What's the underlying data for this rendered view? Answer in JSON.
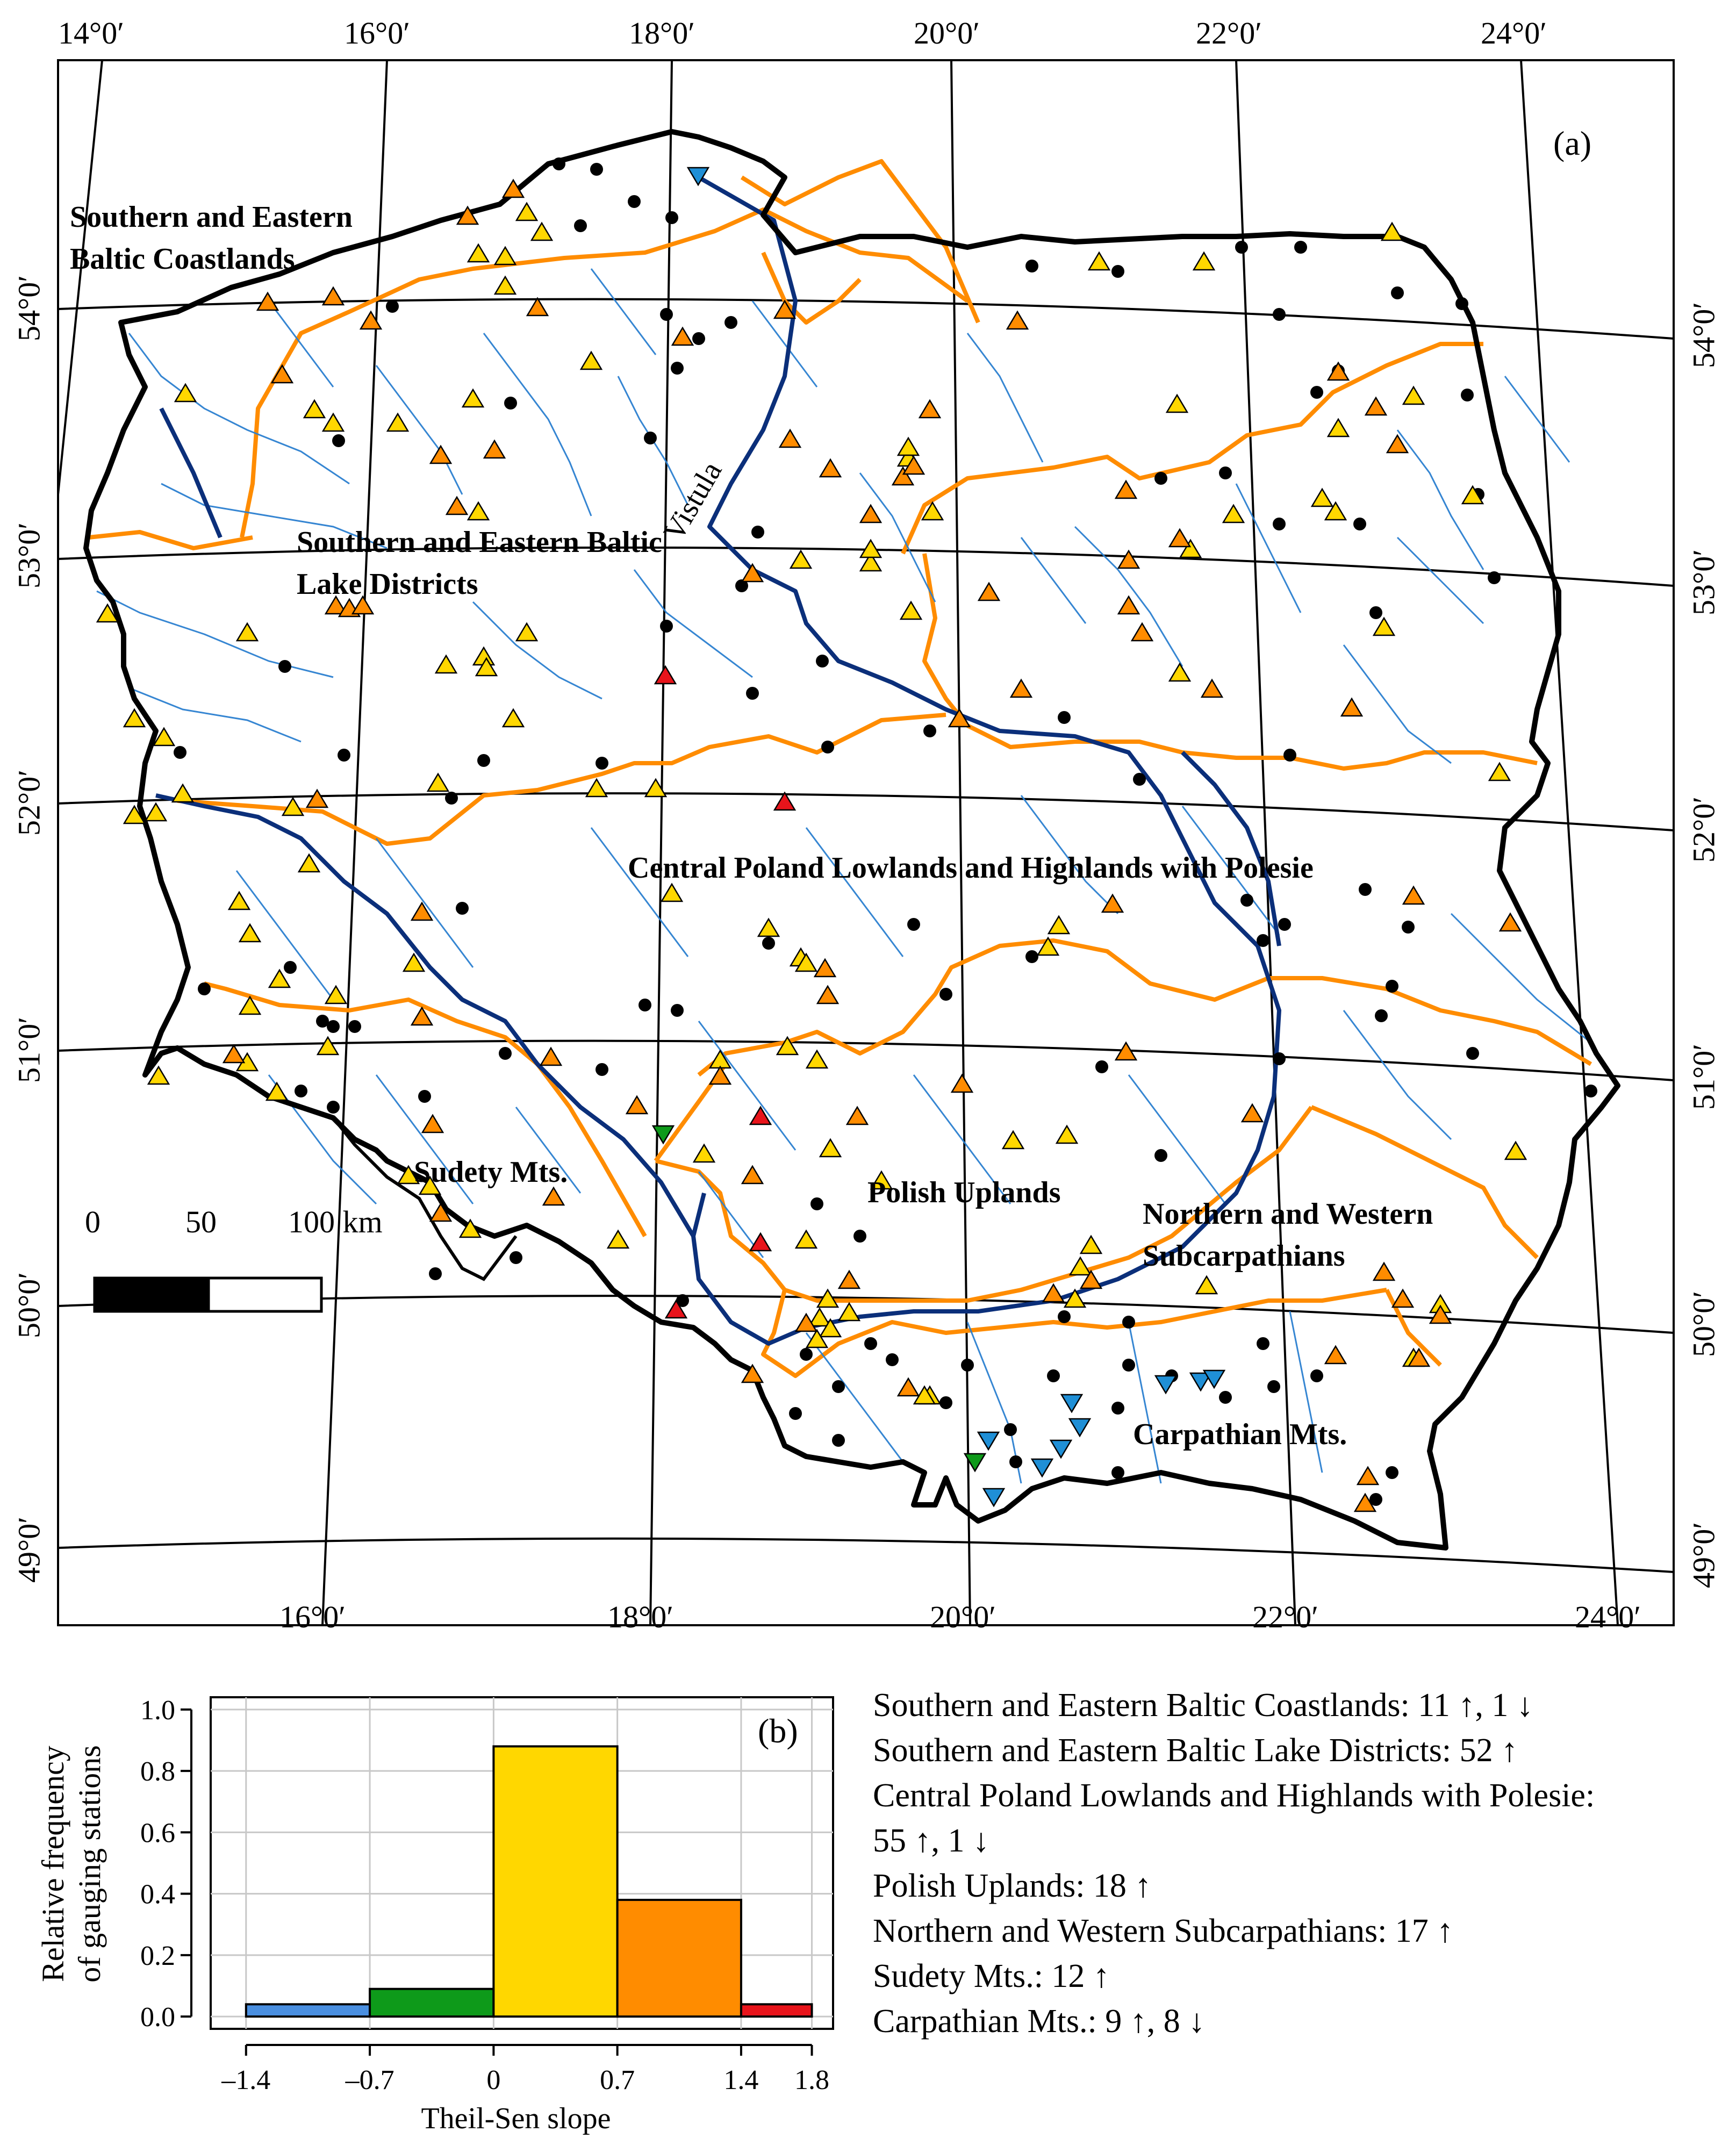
{
  "map": {
    "panel_label": "(a)",
    "river_label": "Vistula",
    "top_lon_labels": [
      "14°0′",
      "16°0′",
      "18°0′",
      "20°0′",
      "22°0′",
      "24°0′"
    ],
    "bottom_lon_labels": [
      "16°0′",
      "18°0′",
      "20°0′",
      "22°0′",
      "24°0′"
    ],
    "left_lat_labels": [
      "54°0′",
      "53°0′",
      "52°0′",
      "51°0′",
      "50°0′",
      "49°0′"
    ],
    "right_lat_labels": [
      "54°0′",
      "53°0′",
      "52°0′",
      "51°0′",
      "50°0′",
      "49°0′"
    ],
    "regions": {
      "baltic_coastlands_line1": "Southern and Eastern",
      "baltic_coastlands_line2": "Baltic Coastlands",
      "lake_districts_line1": "Southern and Eastern Baltic",
      "lake_districts_line2": "Lake Districts",
      "central_poland": "Central Poland Lowlands and Highlands with Polesie",
      "polish_uplands": "Polish Uplands",
      "subcarpathians_line1": "Northern and Western",
      "subcarpathians_line2": "Subcarpathians",
      "sudety": "Sudety Mts.",
      "carpathian": "Carpathian Mts."
    },
    "scale_bar": {
      "labels": [
        "0",
        "50",
        "100 km"
      ]
    },
    "colors": {
      "border": "#000000",
      "region_boundary": "#ff8c00",
      "river_major": "#0b2f7a",
      "river_minor": "#2b7fd0",
      "up_yellow": "#ffd700",
      "up_orange": "#ff8c00",
      "up_red": "#e8141b",
      "down_blue": "#1f8fd6",
      "down_green": "#0e9a1a",
      "no_trend": "#000000"
    }
  },
  "histogram": {
    "panel_label": "(b)",
    "ylabel_line1": "Relative frequency",
    "ylabel_line2": "of gauging stations",
    "xlabel": "Theil-Sen slope",
    "x_tick_labels": [
      "–1.4",
      "–0.7",
      "0",
      "0.7",
      "1.4",
      "1.8"
    ],
    "y_tick_labels": [
      "0.0",
      "0.2",
      "0.4",
      "0.6",
      "0.8",
      "1.0"
    ]
  },
  "chart_data": {
    "type": "bar",
    "xlabel": "Theil-Sen slope",
    "ylabel": "Relative frequency of gauging stations",
    "bins": [
      [
        -1.4,
        -0.7
      ],
      [
        -0.7,
        0
      ],
      [
        0,
        0.7
      ],
      [
        0.7,
        1.4
      ],
      [
        1.4,
        1.8
      ]
    ],
    "values": [
      0.04,
      0.09,
      0.88,
      0.38,
      0.04
    ],
    "colors": [
      "#4a8fe0",
      "#0e9a1a",
      "#ffd700",
      "#ff8c00",
      "#e8141b"
    ],
    "ylim": [
      0,
      1.0
    ],
    "x_ticks": [
      -1.4,
      -0.7,
      0,
      0.7,
      1.4,
      1.8
    ],
    "y_ticks": [
      0,
      0.2,
      0.4,
      0.6,
      0.8,
      1.0
    ]
  },
  "stats": [
    "Southern and Eastern Baltic Coastlands: 11 ↑, 1 ↓",
    "Southern and Eastern Baltic Lake Districts: 52 ↑",
    "Central Poland Lowlands and Highlands with Polesie:",
    "55 ↑, 1 ↓",
    "Polish Uplands: 18 ↑",
    "Northern and Western Subcarpathians: 17 ↑",
    "Sudety Mts.: 12 ↑",
    "Carpathian Mts.: 9 ↑, 8 ↓"
  ]
}
